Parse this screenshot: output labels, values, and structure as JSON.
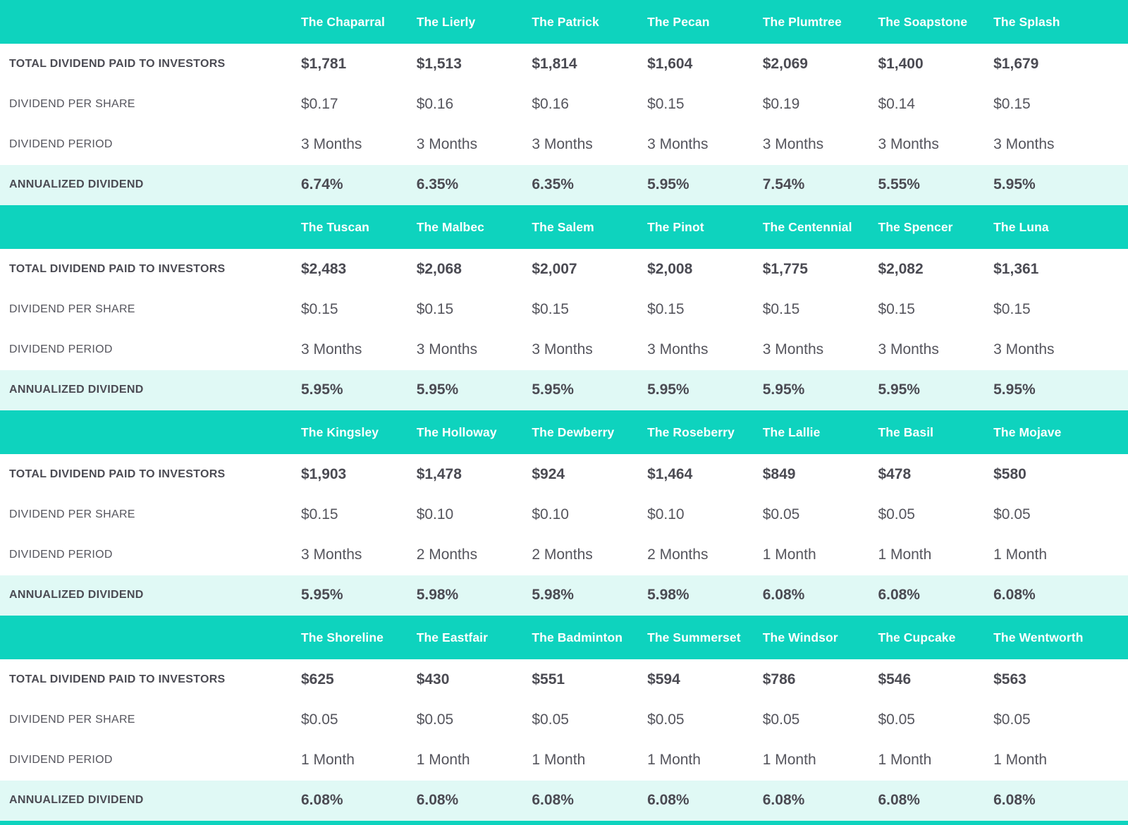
{
  "colors": {
    "header_teal": "#0ed3be",
    "annualized_bg": "#e0f9f5",
    "header_text": "#ffffff",
    "text_dark": "#4b4b53",
    "text_mid": "#55555d"
  },
  "chart_data": {
    "type": "table",
    "row_labels": [
      "TOTAL DIVIDEND PAID TO INVESTORS",
      "DIVIDEND PER SHARE",
      "DIVIDEND PERIOD",
      "ANNUALIZED DIVIDEND"
    ],
    "sections": [
      {
        "properties": [
          "The Chaparral",
          "The Lierly",
          "The Patrick",
          "The Pecan",
          "The Plumtree",
          "The Soapstone",
          "The Splash"
        ],
        "rows": [
          {
            "label": "TOTAL DIVIDEND PAID TO INVESTORS",
            "style": "total",
            "values": [
              "$1,781",
              "$1,513",
              "$1,814",
              "$1,604",
              "$2,069",
              "$1,400",
              "$1,679"
            ]
          },
          {
            "label": "DIVIDEND PER SHARE",
            "style": "plain",
            "values": [
              "$0.17",
              "$0.16",
              "$0.16",
              "$0.15",
              "$0.19",
              "$0.14",
              "$0.15"
            ]
          },
          {
            "label": "DIVIDEND PERIOD",
            "style": "plain",
            "values": [
              "3 Months",
              "3 Months",
              "3 Months",
              "3 Months",
              "3 Months",
              "3 Months",
              "3 Months"
            ]
          },
          {
            "label": "ANNUALIZED DIVIDEND",
            "style": "annualized",
            "values": [
              "6.74%",
              "6.35%",
              "6.35%",
              "5.95%",
              "7.54%",
              "5.55%",
              "5.95%"
            ]
          }
        ]
      },
      {
        "properties": [
          "The Tuscan",
          "The Malbec",
          "The Salem",
          "The Pinot",
          "The Centennial",
          "The Spencer",
          "The Luna"
        ],
        "rows": [
          {
            "label": "TOTAL DIVIDEND PAID TO INVESTORS",
            "style": "total",
            "values": [
              "$2,483",
              "$2,068",
              "$2,007",
              "$2,008",
              "$1,775",
              "$2,082",
              "$1,361"
            ]
          },
          {
            "label": "DIVIDEND PER SHARE",
            "style": "plain",
            "values": [
              "$0.15",
              "$0.15",
              "$0.15",
              "$0.15",
              "$0.15",
              "$0.15",
              "$0.15"
            ]
          },
          {
            "label": "DIVIDEND PERIOD",
            "style": "plain",
            "values": [
              "3 Months",
              "3 Months",
              "3 Months",
              "3 Months",
              "3 Months",
              "3 Months",
              "3 Months"
            ]
          },
          {
            "label": "ANNUALIZED DIVIDEND",
            "style": "annualized",
            "values": [
              "5.95%",
              "5.95%",
              "5.95%",
              "5.95%",
              "5.95%",
              "5.95%",
              "5.95%"
            ]
          }
        ]
      },
      {
        "properties": [
          "The Kingsley",
          "The Holloway",
          "The Dewberry",
          "The Roseberry",
          "The Lallie",
          "The Basil",
          "The Mojave"
        ],
        "rows": [
          {
            "label": "TOTAL DIVIDEND PAID TO INVESTORS",
            "style": "total",
            "values": [
              "$1,903",
              "$1,478",
              "$924",
              "$1,464",
              "$849",
              "$478",
              "$580"
            ]
          },
          {
            "label": "DIVIDEND PER SHARE",
            "style": "plain",
            "values": [
              "$0.15",
              "$0.10",
              "$0.10",
              "$0.10",
              "$0.05",
              "$0.05",
              "$0.05"
            ]
          },
          {
            "label": "DIVIDEND PERIOD",
            "style": "plain",
            "values": [
              "3 Months",
              "2 Months",
              "2 Months",
              "2 Months",
              "1 Month",
              "1 Month",
              "1 Month"
            ]
          },
          {
            "label": "ANNUALIZED DIVIDEND",
            "style": "annualized",
            "values": [
              "5.95%",
              "5.98%",
              "5.98%",
              "5.98%",
              "6.08%",
              "6.08%",
              "6.08%"
            ]
          }
        ]
      },
      {
        "properties": [
          "The Shoreline",
          "The Eastfair",
          "The Badminton",
          "The Summerset",
          "The Windsor",
          "The Cupcake",
          "The Wentworth"
        ],
        "rows": [
          {
            "label": "TOTAL DIVIDEND PAID TO INVESTORS",
            "style": "total",
            "values": [
              "$625",
              "$430",
              "$551",
              "$594",
              "$786",
              "$546",
              "$563"
            ]
          },
          {
            "label": "DIVIDEND PER SHARE",
            "style": "plain",
            "values": [
              "$0.05",
              "$0.05",
              "$0.05",
              "$0.05",
              "$0.05",
              "$0.05",
              "$0.05"
            ]
          },
          {
            "label": "DIVIDEND PERIOD",
            "style": "plain",
            "values": [
              "1 Month",
              "1 Month",
              "1 Month",
              "1 Month",
              "1 Month",
              "1 Month",
              "1 Month"
            ]
          },
          {
            "label": "ANNUALIZED DIVIDEND",
            "style": "annualized",
            "values": [
              "6.08%",
              "6.08%",
              "6.08%",
              "6.08%",
              "6.08%",
              "6.08%",
              "6.08%"
            ]
          }
        ]
      }
    ]
  }
}
